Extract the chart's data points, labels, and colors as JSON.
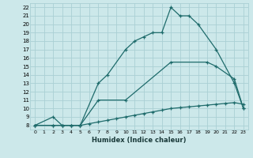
{
  "xlabel": "Humidex (Indice chaleur)",
  "bg_color": "#cce8ea",
  "grid_color": "#aad0d4",
  "line_color": "#1e6b6b",
  "xlim": [
    -0.5,
    23.5
  ],
  "ylim": [
    7.5,
    22.5
  ],
  "xticks": [
    0,
    1,
    2,
    3,
    4,
    5,
    6,
    7,
    8,
    9,
    10,
    11,
    12,
    13,
    14,
    15,
    16,
    17,
    18,
    19,
    20,
    21,
    22,
    23
  ],
  "yticks": [
    8,
    9,
    10,
    11,
    12,
    13,
    14,
    15,
    16,
    17,
    18,
    19,
    20,
    21,
    22
  ],
  "series": [
    {
      "x": [
        0,
        2,
        3,
        4,
        5,
        7,
        8,
        10,
        11,
        12,
        13,
        14,
        15,
        16,
        17,
        18,
        20,
        22,
        23
      ],
      "y": [
        8,
        9,
        8,
        8,
        8,
        13,
        14,
        17,
        18,
        18.5,
        19,
        19,
        22,
        21,
        21,
        20,
        17,
        13,
        10
      ]
    },
    {
      "x": [
        0,
        2,
        3,
        4,
        5,
        7,
        10,
        15,
        19,
        20,
        22,
        23
      ],
      "y": [
        8,
        8,
        8,
        8,
        8,
        11,
        11,
        15.5,
        15.5,
        15,
        13.5,
        10
      ]
    },
    {
      "x": [
        0,
        2,
        3,
        4,
        5,
        6,
        7,
        8,
        9,
        10,
        11,
        12,
        13,
        14,
        15,
        16,
        17,
        18,
        19,
        20,
        21,
        22,
        23
      ],
      "y": [
        8,
        8,
        8,
        8,
        8,
        8.2,
        8.4,
        8.6,
        8.8,
        9,
        9.2,
        9.4,
        9.6,
        9.8,
        10,
        10.1,
        10.2,
        10.3,
        10.4,
        10.5,
        10.6,
        10.7,
        10.5
      ]
    }
  ]
}
